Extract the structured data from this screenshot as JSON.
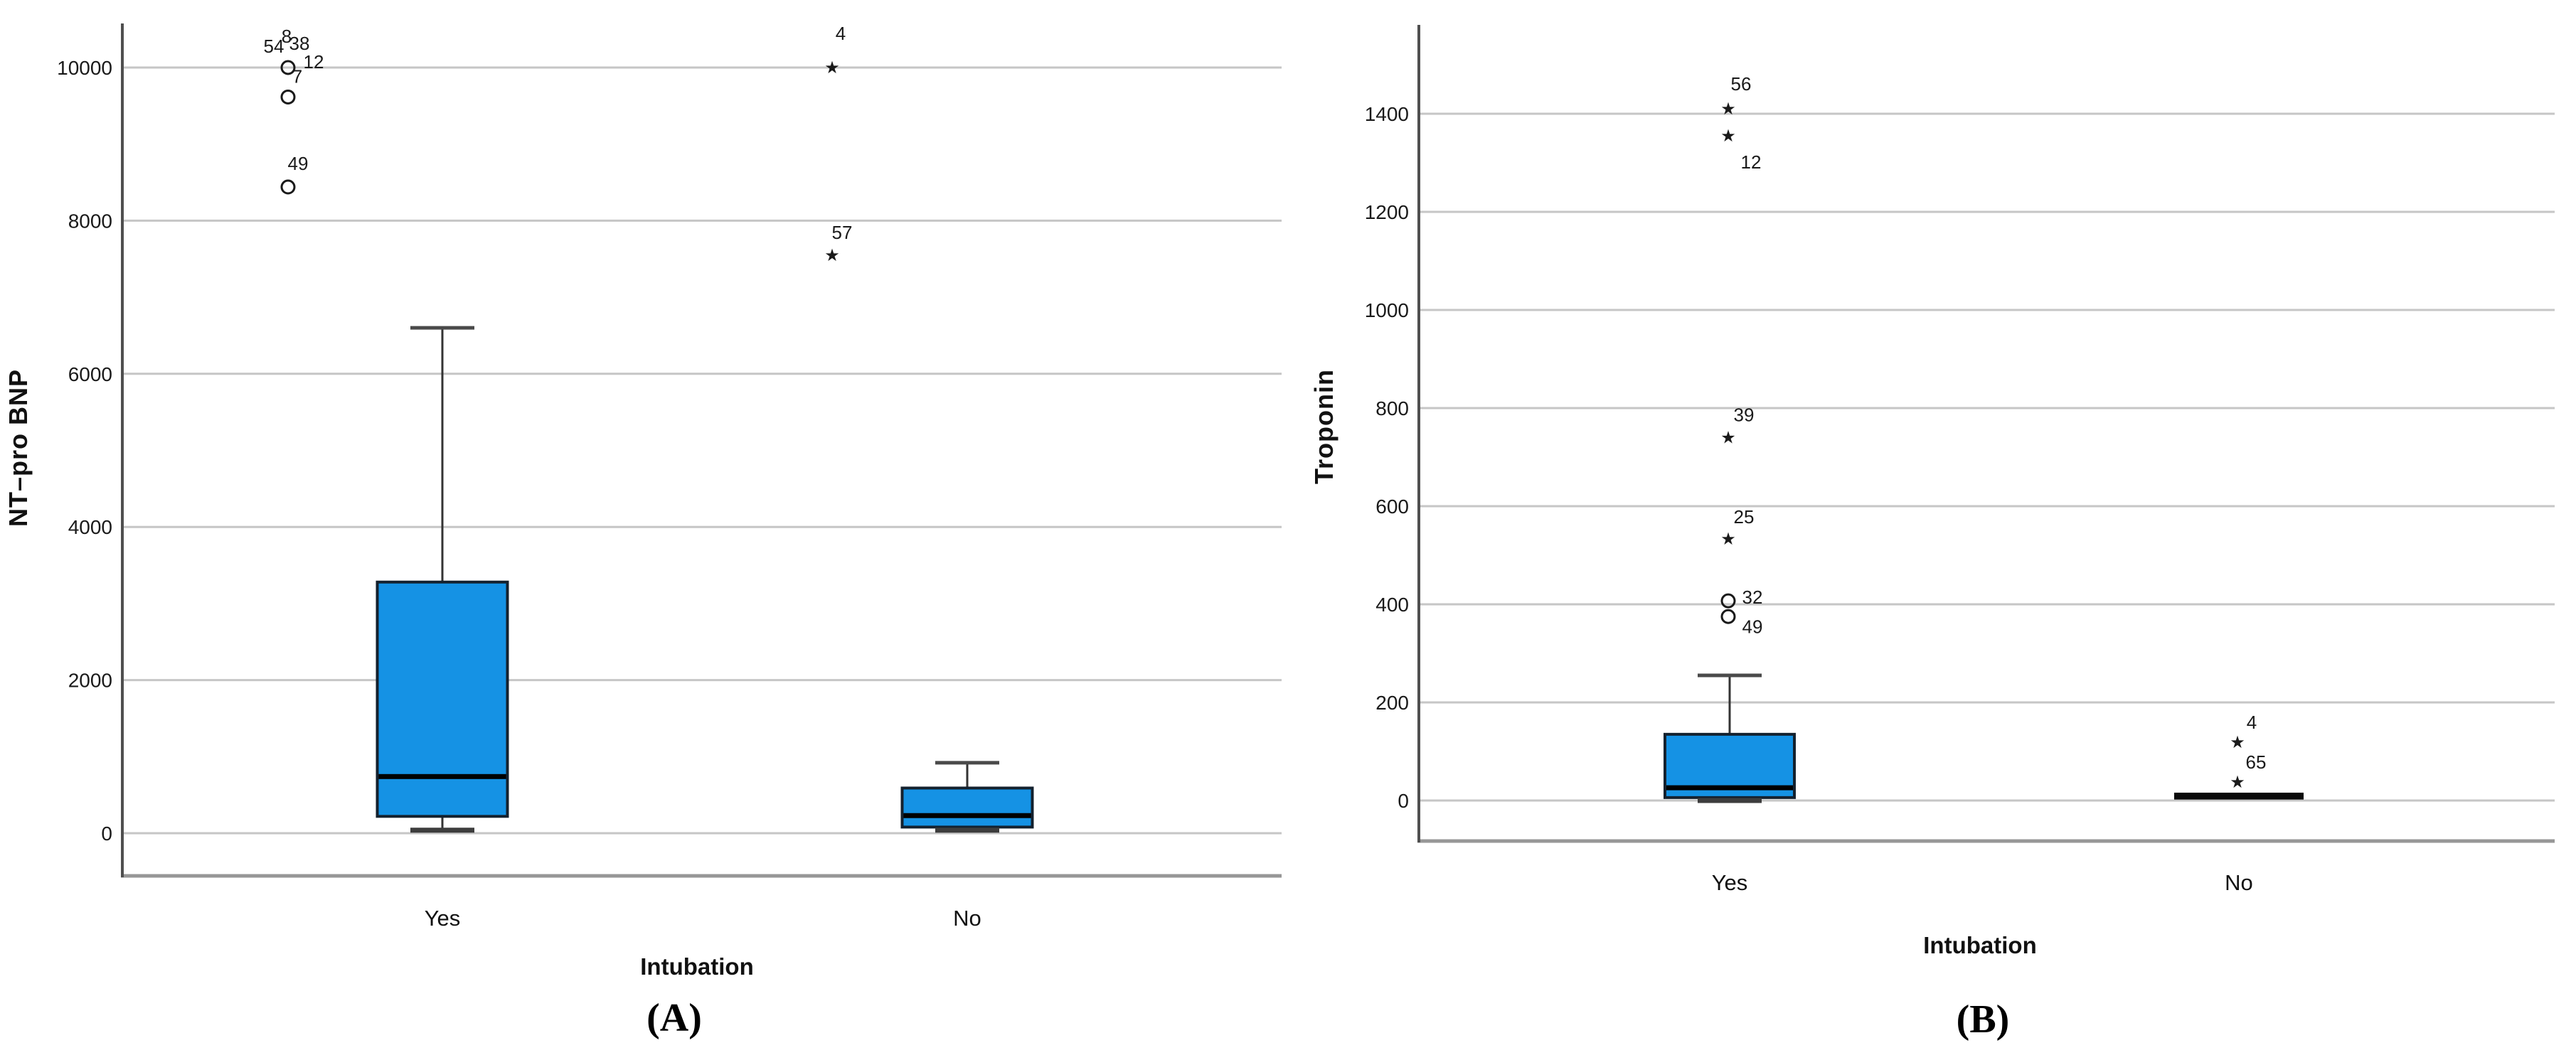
{
  "figure": {
    "description": "Two SPSS-style box plots comparing biomarker levels by intubation status",
    "background": "#ffffff"
  },
  "colors": {
    "box_fill": "#1592e4",
    "box_stroke": "#14212e",
    "median": "#000000",
    "whisker": "#333333",
    "cap": "#4a4a4a",
    "gridline": "#c6c6c6",
    "frame": "#979797",
    "axis_line": "#4f4f4f",
    "text": "#1a1a1a",
    "collapsed_box": "#0a0a0a"
  },
  "chart_data": [
    {
      "type": "box",
      "panel_label": "(A)",
      "ylabel": "NT–pro BNP",
      "xlabel": "Intubation",
      "categories": [
        "Yes",
        "No"
      ],
      "yticks": [
        0,
        2000,
        4000,
        6000,
        8000,
        10000
      ],
      "ylim": [
        -560,
        10570
      ],
      "grid": true,
      "boxes": [
        {
          "category": "Yes",
          "q1": 220,
          "median": 740,
          "q3": 3280,
          "whisker_low": 40,
          "whisker_high": 6600,
          "outliers": [
            {
              "value": 10000,
              "marker": "circle",
              "labels": [
                {
                  "t": "54",
                  "dx": -20,
                  "dy": -30
                },
                {
                  "t": "8",
                  "dx": -2,
                  "dy": -44
                },
                {
                  "t": "38",
                  "dx": 16,
                  "dy": -34
                },
                {
                  "t": "12",
                  "dx": 36,
                  "dy": -8
                }
              ]
            },
            {
              "value": 9615,
              "marker": "circle",
              "labels": [
                {
                  "t": "7",
                  "dx": 13,
                  "dy": -29
                }
              ]
            },
            {
              "value": 8440,
              "marker": "circle",
              "labels": [
                {
                  "t": "49",
                  "dx": 14,
                  "dy": -33
                }
              ]
            }
          ]
        },
        {
          "category": "No",
          "q1": 80,
          "median": 230,
          "q3": 590,
          "whisker_low": 40,
          "whisker_high": 920,
          "outliers": [
            {
              "value": 10000,
              "marker": "star",
              "labels": [
                {
                  "t": "4",
                  "dx": 12,
                  "dy": -48
                }
              ]
            },
            {
              "value": 7550,
              "marker": "star",
              "labels": [
                {
                  "t": "57",
                  "dx": 14,
                  "dy": -32
                }
              ]
            }
          ]
        }
      ]
    },
    {
      "type": "box",
      "panel_label": "(B)",
      "ylabel": "Troponin",
      "xlabel": "Intubation",
      "categories": [
        "Yes",
        "No"
      ],
      "yticks": [
        0,
        200,
        400,
        600,
        800,
        1000,
        1200,
        1400
      ],
      "ylim": [
        -82,
        1580
      ],
      "grid": true,
      "boxes": [
        {
          "category": "Yes",
          "q1": 6,
          "median": 26,
          "q3": 135,
          "whisker_low": 0,
          "whisker_high": 255,
          "outliers": [
            {
              "value": 1410,
              "marker": "star",
              "labels": [
                {
                  "t": "56",
                  "dx": 18,
                  "dy": -35
                }
              ]
            },
            {
              "value": 1355,
              "marker": "star",
              "labels": [
                {
                  "t": "12",
                  "dx": 32,
                  "dy": 37
                }
              ]
            },
            {
              "value": 740,
              "marker": "star",
              "labels": [
                {
                  "t": "39",
                  "dx": 22,
                  "dy": -32
                }
              ]
            },
            {
              "value": 533,
              "marker": "star",
              "labels": [
                {
                  "t": "25",
                  "dx": 22,
                  "dy": -31
                }
              ]
            },
            {
              "value": 407,
              "marker": "circle",
              "labels": [
                {
                  "t": "32",
                  "dx": 34,
                  "dy": -5
                }
              ]
            },
            {
              "value": 375,
              "marker": "circle",
              "labels": [
                {
                  "t": "49",
                  "dx": 34,
                  "dy": 14
                }
              ]
            }
          ]
        },
        {
          "category": "No",
          "collapsed": true,
          "q1": 2,
          "median": 8,
          "q3": 16,
          "whisker_low": 2,
          "whisker_high": 16,
          "outliers": [
            {
              "value": 119,
              "marker": "star",
              "labels": [
                {
                  "t": "4",
                  "dx": 20,
                  "dy": -28
                }
              ]
            },
            {
              "value": 38,
              "marker": "star",
              "labels": [
                {
                  "t": "65",
                  "dx": 26,
                  "dy": -28
                }
              ]
            }
          ]
        }
      ]
    }
  ]
}
